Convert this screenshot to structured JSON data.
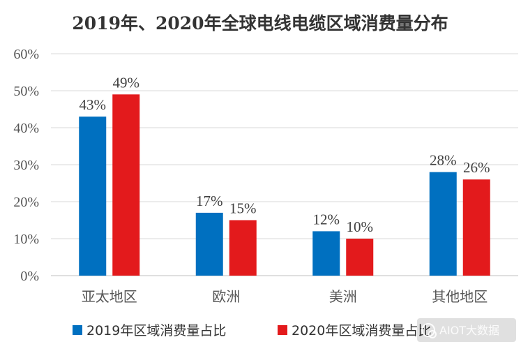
{
  "chart_data": {
    "type": "bar",
    "title": "2019年、2020年全球电线电缆区域消费量分布",
    "categories": [
      "亚太地区",
      "欧洲",
      "美洲",
      "其他地区"
    ],
    "series": [
      {
        "name": "2019年区域消费量占比",
        "values": [
          43,
          17,
          12,
          28
        ],
        "labels": [
          "43%",
          "17%",
          "12%",
          "28%"
        ],
        "color": "#0070c0"
      },
      {
        "name": "2020年区域消费量占比",
        "values": [
          49,
          15,
          10,
          26
        ],
        "labels": [
          "49%",
          "15%",
          "10%",
          "26%"
        ],
        "color": "#e31a1c"
      }
    ],
    "ylim": [
      0,
      60
    ],
    "yticks": [
      "0%",
      "10%",
      "20%",
      "30%",
      "40%",
      "50%",
      "60%"
    ],
    "xlabel": "",
    "ylabel": "",
    "legend": "bottom",
    "grid": true
  },
  "watermark": {
    "text": "AIOT大数据"
  }
}
